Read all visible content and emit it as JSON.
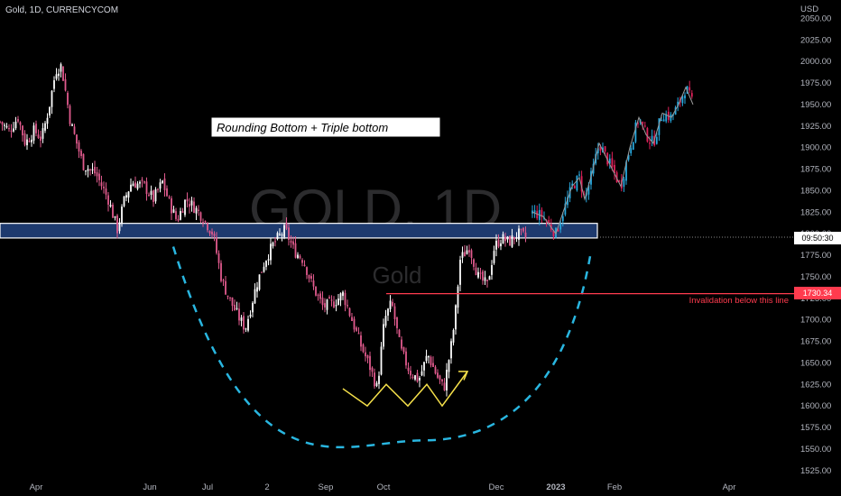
{
  "header": {
    "symbol_line": "Gold, 1D, CURRENCYCOM",
    "currency": "USD"
  },
  "watermark": {
    "ticker": "GOLD, 1D",
    "name": "Gold"
  },
  "annotations": {
    "pattern_label": "Rounding Bottom + Triple bottom",
    "invalidation_label": "Invalidation below this line"
  },
  "price_badges": {
    "time_label": "09:50:30",
    "invalidation_price": "1730.34"
  },
  "colors": {
    "up": "#ffffff",
    "down": "#e05a8d",
    "projection_up": "#29a9de",
    "projection_down": "#e0215a",
    "zone_fill": "#1e3a6e",
    "arc": "#29b6e0",
    "triple_bottom": "#f5e04a",
    "invalidation": "#ff3b4e"
  },
  "chart_data": {
    "type": "candlestick",
    "title": "Gold, 1D, CURRENCYCOM",
    "ylabel": "USD",
    "ylim": [
      1515,
      2060
    ],
    "y_ticks": [
      "2050.00",
      "2025.00",
      "2000.00",
      "1975.00",
      "1950.00",
      "1925.00",
      "1900.00",
      "1875.00",
      "1850.00",
      "1825.00",
      "1800.00",
      "1775.00",
      "1750.00",
      "1725.00",
      "1700.00",
      "1675.00",
      "1650.00",
      "1625.00",
      "1600.00",
      "1575.00",
      "1550.00",
      "1525.00"
    ],
    "x_ticks": [
      "Apr",
      "Jun",
      "Jul",
      "2",
      "Sep",
      "Oct",
      "Dec",
      "2023",
      "Feb",
      "Apr"
    ],
    "grid": false,
    "resistance_zone": [
      1795,
      1812
    ],
    "invalidation_level": 1730.34,
    "current_price_line": 1796,
    "rounding_bottom_min": 1560,
    "series": [
      {
        "name": "historical",
        "anchors": [
          [
            0,
            1930
          ],
          [
            10,
            1920
          ],
          [
            20,
            1935
          ],
          [
            28,
            1905
          ],
          [
            38,
            1920
          ],
          [
            46,
            1910
          ],
          [
            54,
            1945
          ],
          [
            62,
            1990
          ],
          [
            68,
            1995
          ],
          [
            78,
            1930
          ],
          [
            92,
            1880
          ],
          [
            106,
            1870
          ],
          [
            120,
            1840
          ],
          [
            130,
            1805
          ],
          [
            138,
            1840
          ],
          [
            146,
            1860
          ],
          [
            160,
            1855
          ],
          [
            170,
            1840
          ],
          [
            180,
            1860
          ],
          [
            188,
            1835
          ],
          [
            196,
            1815
          ],
          [
            206,
            1840
          ],
          [
            216,
            1830
          ],
          [
            224,
            1820
          ],
          [
            236,
            1800
          ],
          [
            246,
            1745
          ],
          [
            256,
            1720
          ],
          [
            266,
            1700
          ],
          [
            272,
            1690
          ],
          [
            284,
            1740
          ],
          [
            294,
            1770
          ],
          [
            304,
            1790
          ],
          [
            316,
            1805
          ],
          [
            326,
            1780
          ],
          [
            336,
            1770
          ],
          [
            346,
            1740
          ],
          [
            358,
            1715
          ],
          [
            370,
            1720
          ],
          [
            380,
            1730
          ],
          [
            390,
            1700
          ],
          [
            400,
            1670
          ],
          [
            410,
            1645
          ],
          [
            418,
            1620
          ],
          [
            426,
            1700
          ],
          [
            434,
            1720
          ],
          [
            444,
            1665
          ],
          [
            454,
            1640
          ],
          [
            464,
            1630
          ],
          [
            474,
            1660
          ],
          [
            484,
            1635
          ],
          [
            492,
            1620
          ],
          [
            500,
            1670
          ],
          [
            504,
            1700
          ],
          [
            510,
            1770
          ],
          [
            520,
            1785
          ],
          [
            530,
            1750
          ],
          [
            540,
            1740
          ],
          [
            548,
            1785
          ],
          [
            556,
            1795
          ],
          [
            564,
            1790
          ],
          [
            574,
            1800
          ],
          [
            584,
            1795
          ]
        ]
      },
      {
        "name": "projection",
        "anchors": [
          [
            590,
            1825
          ],
          [
            602,
            1820
          ],
          [
            616,
            1800
          ],
          [
            624,
            1825
          ],
          [
            634,
            1855
          ],
          [
            642,
            1865
          ],
          [
            648,
            1840
          ],
          [
            656,
            1870
          ],
          [
            664,
            1905
          ],
          [
            676,
            1880
          ],
          [
            688,
            1855
          ],
          [
            698,
            1900
          ],
          [
            708,
            1935
          ],
          [
            716,
            1915
          ],
          [
            724,
            1905
          ],
          [
            734,
            1940
          ],
          [
            744,
            1935
          ],
          [
            752,
            1950
          ],
          [
            760,
            1970
          ],
          [
            768,
            1950
          ]
        ]
      }
    ]
  }
}
